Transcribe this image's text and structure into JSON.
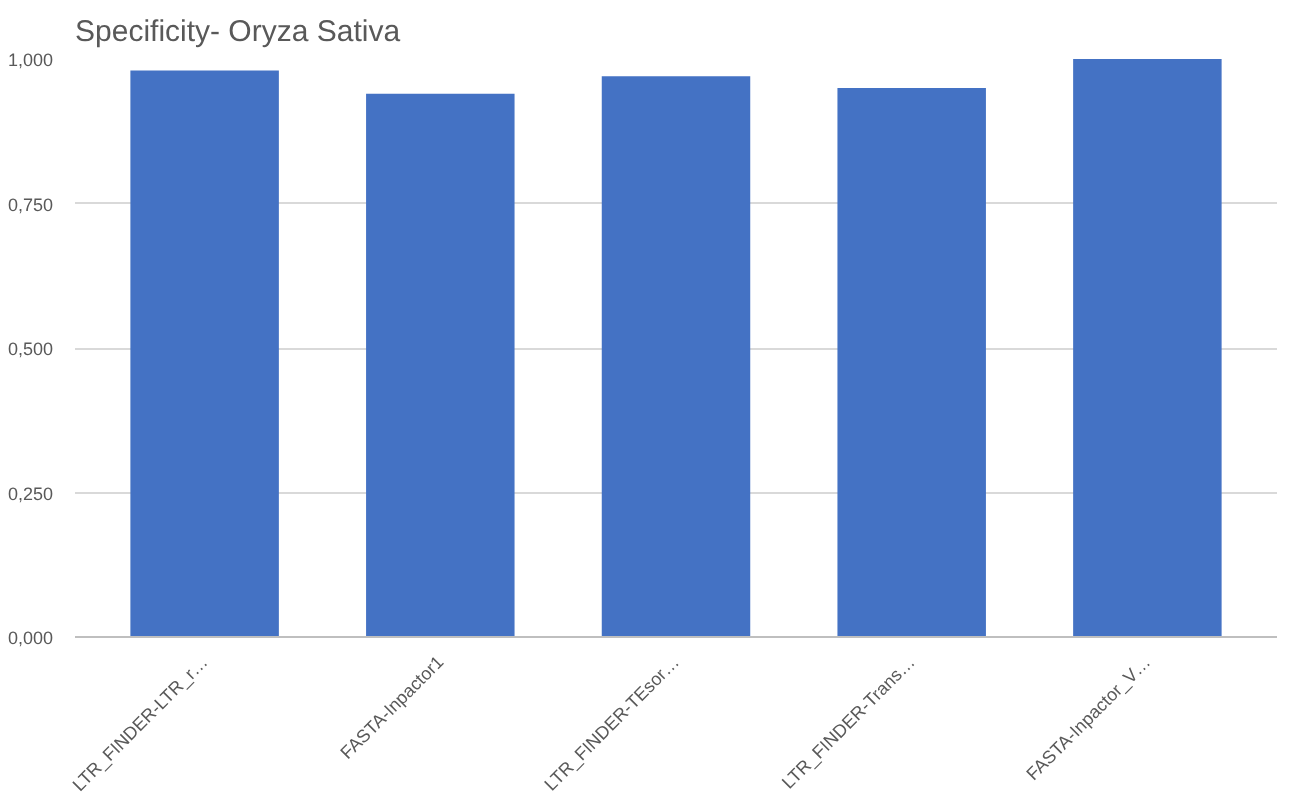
{
  "chart_data": {
    "type": "bar",
    "title": "Specificity- Oryza Sativa",
    "categories": [
      "LTR_FINDER-LTR_r…",
      "FASTA-Inpactor1",
      "LTR_FINDER-TEsor…",
      "LTR_FINDER-Trans…",
      "FASTA-Inpactor_V…"
    ],
    "values": [
      0.98,
      0.94,
      0.97,
      0.95,
      1.0
    ],
    "color": "#4472c4",
    "ylim": [
      0,
      1
    ],
    "yticks": [
      {
        "value": 0,
        "label": "0,000"
      },
      {
        "value": 0.25,
        "label": "0,250"
      },
      {
        "value": 0.5,
        "label": "0,500"
      },
      {
        "value": 0.75,
        "label": "0,750"
      },
      {
        "value": 1,
        "label": "1,000"
      }
    ],
    "grid": "y"
  }
}
